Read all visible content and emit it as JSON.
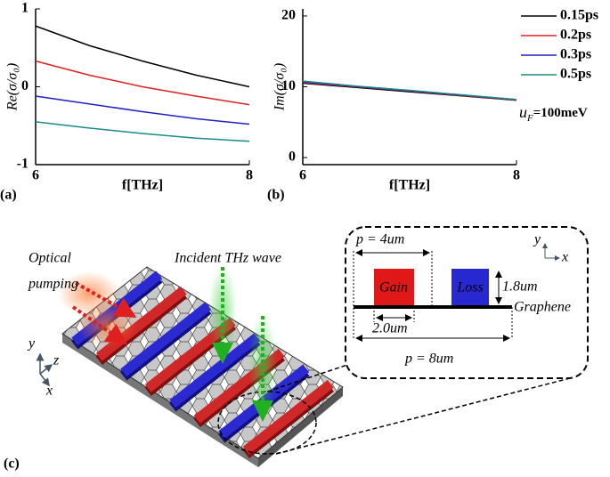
{
  "chart_data": [
    {
      "type": "line",
      "panel": "(a)",
      "y_label": "Re(σ/σ₀)",
      "x_label": "f[THz]",
      "xlim": [
        6,
        8
      ],
      "xticks": [
        6,
        8
      ],
      "ylim": [
        -1,
        1
      ],
      "yticks": [
        -1,
        0,
        1
      ],
      "x": [
        6,
        6.5,
        7,
        7.5,
        8
      ],
      "series": [
        {
          "color": "#000000",
          "values": [
            0.78,
            0.53,
            0.33,
            0.15,
            0.0
          ]
        },
        {
          "color": "#e02020",
          "values": [
            0.33,
            0.15,
            0.0,
            -0.12,
            -0.23
          ]
        },
        {
          "color": "#2020c0",
          "values": [
            -0.12,
            -0.22,
            -0.32,
            -0.41,
            -0.48
          ]
        },
        {
          "color": "#1a8a8a",
          "values": [
            -0.45,
            -0.53,
            -0.6,
            -0.66,
            -0.7
          ]
        }
      ]
    },
    {
      "type": "line",
      "panel": "(b)",
      "y_label": "Im(σ/σ₀)",
      "x_label": "f[THz]",
      "xlim": [
        6,
        8
      ],
      "xticks": [
        6,
        8
      ],
      "ylim": [
        -1,
        21
      ],
      "yticks": [
        0,
        10,
        20
      ],
      "x": [
        6,
        6.5,
        7,
        7.5,
        8
      ],
      "annotation": {
        "symbol": "u",
        "subscript": "F",
        "text": "=100meV"
      },
      "series": [
        {
          "name": "0.15ps",
          "color": "#000000",
          "values": [
            10.5,
            9.9,
            9.3,
            8.7,
            8.1
          ]
        },
        {
          "name": "0.2ps",
          "color": "#e02020",
          "values": [
            10.6,
            10.0,
            9.4,
            8.75,
            8.15
          ]
        },
        {
          "name": "0.3ps",
          "color": "#2020c0",
          "values": [
            10.7,
            10.05,
            9.45,
            8.8,
            8.2
          ]
        },
        {
          "name": "0.5ps",
          "color": "#1a8a8a",
          "values": [
            10.8,
            10.1,
            9.5,
            8.85,
            8.2
          ]
        }
      ]
    }
  ],
  "diagram": {
    "panel": "(c)",
    "pump_label_1": "Optical",
    "pump_label_2": "pumping",
    "wave_label": "Incident THz wave",
    "axis_y": "y",
    "axis_z": "z",
    "axis_x": "x",
    "inset": {
      "period_small": "p = 4um",
      "gain": "Gain",
      "loss": "Loss",
      "height": "1.8um",
      "graphene": "Graphene",
      "width": "2.0um",
      "period_large": "p = 8um",
      "axis_y": "y",
      "axis_x": "x"
    }
  }
}
